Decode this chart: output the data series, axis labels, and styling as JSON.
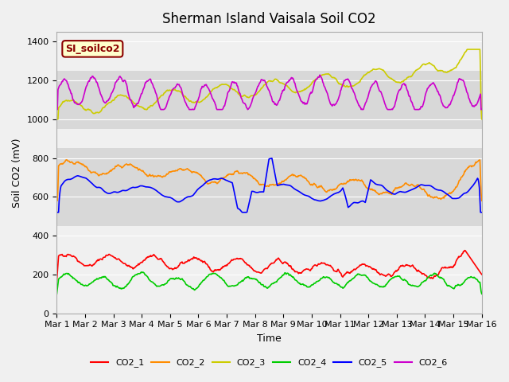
{
  "title": "Sherman Island Vaisala Soil CO2",
  "ylabel": "Soil CO2 (mV)",
  "xlabel": "Time",
  "legend_label": "SI_soilco2",
  "x_tick_labels": [
    "Mar 1",
    "Mar 2",
    "Mar 3",
    "Mar 4",
    "Mar 5",
    "Mar 6",
    "Mar 7",
    "Mar 8",
    "Mar 9",
    "Mar 10",
    "Mar 11",
    "Mar 12",
    "Mar 13",
    "Mar 14",
    "Mar 15",
    "Mar 16"
  ],
  "ylim": [
    0,
    1450
  ],
  "yticks": [
    0,
    200,
    400,
    600,
    800,
    1000,
    1200,
    1400
  ],
  "colors": {
    "CO2_1": "#ff0000",
    "CO2_2": "#ff8c00",
    "CO2_3": "#cccc00",
    "CO2_4": "#00cc00",
    "CO2_5": "#0000ff",
    "CO2_6": "#cc00cc"
  },
  "band1": [
    450,
    850
  ],
  "band2": [
    950,
    1250
  ],
  "background_color": "#e8e8e8"
}
